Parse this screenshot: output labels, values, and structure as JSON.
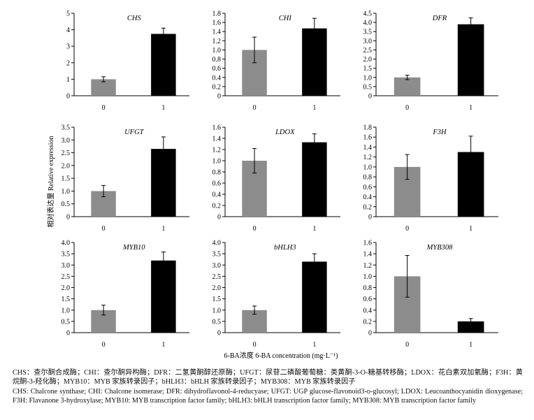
{
  "colors": {
    "gray_bar": "#8c8c8c",
    "black_bar": "#000000",
    "axis": "#000000"
  },
  "figure": {
    "ylabel": "相对表达量 Relative expression",
    "xlabel": "6-BA浓度 6-BA concentration (mg·L⁻¹)"
  },
  "chart_data": [
    {
      "type": "bar",
      "title": "CHS",
      "categories": [
        "0",
        "1"
      ],
      "values": [
        1.0,
        3.75
      ],
      "errors": [
        0.15,
        0.35
      ],
      "ylim": [
        0,
        5
      ],
      "yticks": [
        "0",
        "1",
        "2",
        "3",
        "4",
        "5"
      ]
    },
    {
      "type": "bar",
      "title": "CHI",
      "categories": [
        "0",
        "1"
      ],
      "values": [
        1.0,
        1.47
      ],
      "errors": [
        0.28,
        0.22
      ],
      "ylim": [
        0,
        1.8
      ],
      "yticks": [
        "0",
        "0.2",
        "0.4",
        "0.6",
        "0.8",
        "1.0",
        "1.2",
        "1.4",
        "1.6",
        "1.8"
      ]
    },
    {
      "type": "bar",
      "title": "DFR",
      "categories": [
        "0",
        "1"
      ],
      "values": [
        1.0,
        3.9
      ],
      "errors": [
        0.12,
        0.35
      ],
      "ylim": [
        0,
        4.5
      ],
      "yticks": [
        "0",
        "0.5",
        "1.0",
        "1.5",
        "2.0",
        "2.5",
        "3.0",
        "3.5",
        "4.0",
        "4.5"
      ]
    },
    {
      "type": "bar",
      "title": "UFGT",
      "categories": [
        "0",
        "1"
      ],
      "values": [
        1.0,
        2.65
      ],
      "errors": [
        0.22,
        0.47
      ],
      "ylim": [
        0,
        3.5
      ],
      "yticks": [
        "0",
        "0.5",
        "1.0",
        "1.5",
        "2.0",
        "2.5",
        "3.0",
        "3.5"
      ]
    },
    {
      "type": "bar",
      "title": "LDOX",
      "categories": [
        "0",
        "1"
      ],
      "values": [
        1.0,
        1.33
      ],
      "errors": [
        0.22,
        0.15
      ],
      "ylim": [
        0,
        1.6
      ],
      "yticks": [
        "0",
        "0.2",
        "0.4",
        "0.6",
        "0.8",
        "1.0",
        "1.2",
        "1.4",
        "1.6"
      ]
    },
    {
      "type": "bar",
      "title": "F3H",
      "categories": [
        "0",
        "1"
      ],
      "values": [
        1.0,
        1.3
      ],
      "errors": [
        0.25,
        0.32
      ],
      "ylim": [
        0,
        1.8
      ],
      "yticks": [
        "0",
        "0.2",
        "0.4",
        "0.6",
        "0.8",
        "1.0",
        "1.2",
        "1.4",
        "1.6",
        "1.8"
      ]
    },
    {
      "type": "bar",
      "title": "MYB10",
      "categories": [
        "0",
        "1"
      ],
      "values": [
        1.0,
        3.2
      ],
      "errors": [
        0.22,
        0.38
      ],
      "ylim": [
        0,
        4.0
      ],
      "yticks": [
        "0",
        "0.5",
        "1.0",
        "1.5",
        "2.0",
        "2.5",
        "3.0",
        "3.5",
        "4.0"
      ]
    },
    {
      "type": "bar",
      "title": "bHLH3",
      "categories": [
        "0",
        "1"
      ],
      "values": [
        1.0,
        3.15
      ],
      "errors": [
        0.18,
        0.35
      ],
      "ylim": [
        0,
        4.0
      ],
      "yticks": [
        "0",
        "0.5",
        "1.0",
        "1.5",
        "2.0",
        "2.5",
        "3.0",
        "3.5",
        "4.0"
      ]
    },
    {
      "type": "bar",
      "title": "MYB308",
      "categories": [
        "0",
        "1"
      ],
      "values": [
        1.0,
        0.2
      ],
      "errors": [
        0.37,
        0.05
      ],
      "ylim": [
        0,
        1.6
      ],
      "yticks": [
        "0",
        "0.2",
        "0.4",
        "0.6",
        "0.8",
        "1.0",
        "1.2",
        "1.4",
        "1.6"
      ]
    }
  ],
  "caption": {
    "cn": "CHS：查尔酮合成酶；CHI：查尔酮异构酶；DFR：二氢黄酮醇还原酶；UFGT：尿苷二磷酸葡萄糖：类黄酮-3-O-糖基转移酶；LDOX：花白素双加氧酶；F3H：黄烷酮-3-羟化酶；MYB10：MYB 家族转录因子；bHLH3：bHLH 家族转录因子；MYB308：MYB 家族转录因子",
    "en": "CHS: Chalcone synthase; CHI: Chalcone isomerase; DFR: dihydroflavonol-4-reducyase; UFGT: UGP glucose-flavonoid3-o-glucosyl; LDOX: Leucoanthocyanidin dioxygenase; F3H: Flavanone 3-hydroxylase; MYB10: MYB transcription factor family; bHLH3: bHLH transcription factor family; MYB308: MYB transcription factor family"
  }
}
